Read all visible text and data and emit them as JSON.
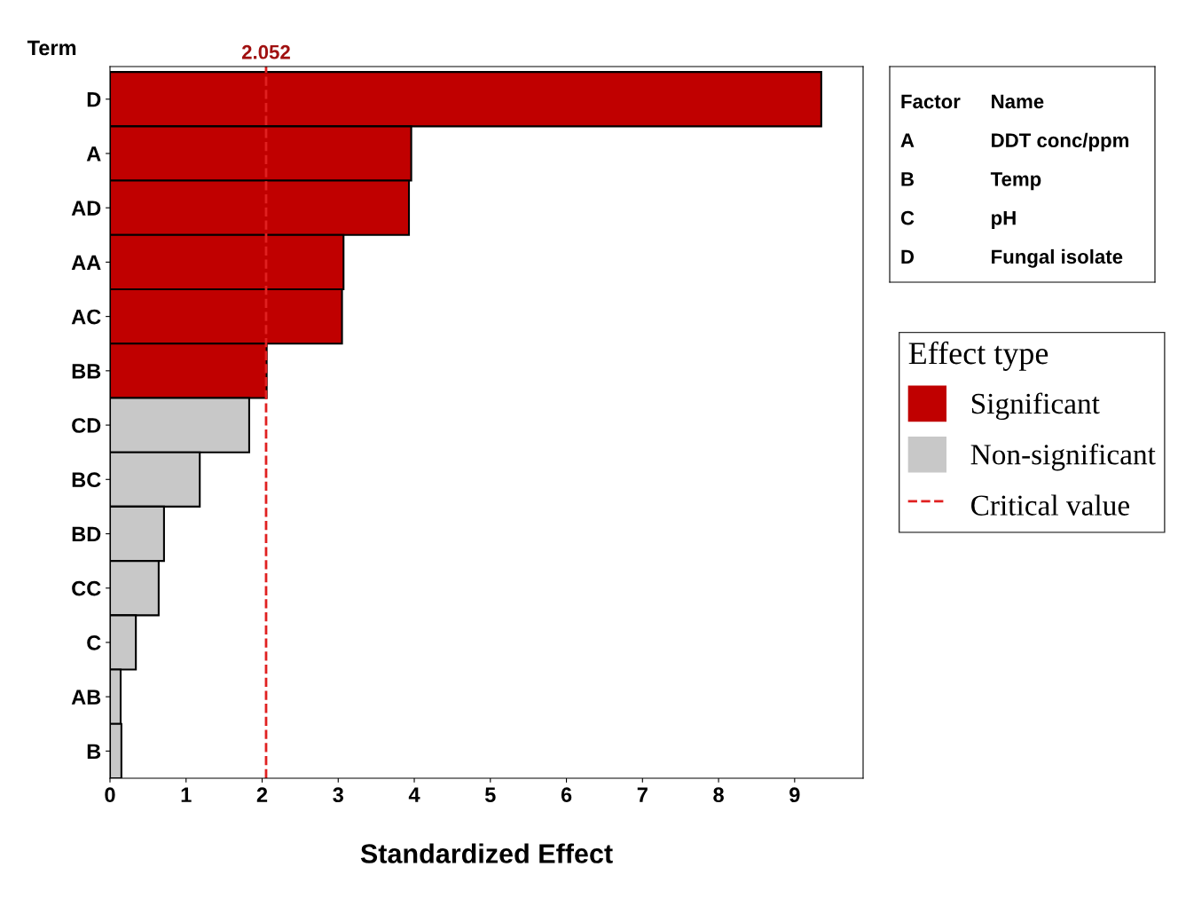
{
  "chart_data": {
    "type": "bar",
    "orientation": "horizontal",
    "xlabel": "Standardized Effect",
    "ylabel": "Term",
    "legend_title": "Effect type",
    "categories": [
      "D",
      "A",
      "AD",
      "AA",
      "AC",
      "BB",
      "CD",
      "BC",
      "BD",
      "CC",
      "C",
      "AB",
      "B"
    ],
    "series": [
      {
        "name": "Significant",
        "color": "#c00000",
        "values": [
          9.35,
          3.96,
          3.93,
          3.07,
          3.05,
          2.06,
          null,
          null,
          null,
          null,
          null,
          null,
          null
        ]
      },
      {
        "name": "Non-significant",
        "color": "#c8c8c8",
        "values": [
          null,
          null,
          null,
          null,
          null,
          null,
          1.83,
          1.18,
          0.71,
          0.64,
          0.34,
          0.14,
          0.15
        ]
      }
    ],
    "xlim": [
      0,
      9.9
    ],
    "xticks": [
      0,
      1,
      2,
      3,
      4,
      5,
      6,
      7,
      8,
      9
    ],
    "ref_lines": [
      {
        "axis": "x",
        "value": 2.052,
        "label": "2.052",
        "color": "#e02020",
        "line_style": "dashed"
      }
    ],
    "annotations": [
      "Factor",
      "Name",
      "A",
      "DDT conc/ppm",
      "B",
      "Temp",
      "C",
      "pH",
      "D",
      "Fungal isolate",
      "Critical value"
    ],
    "legend": "right",
    "grid": false
  }
}
